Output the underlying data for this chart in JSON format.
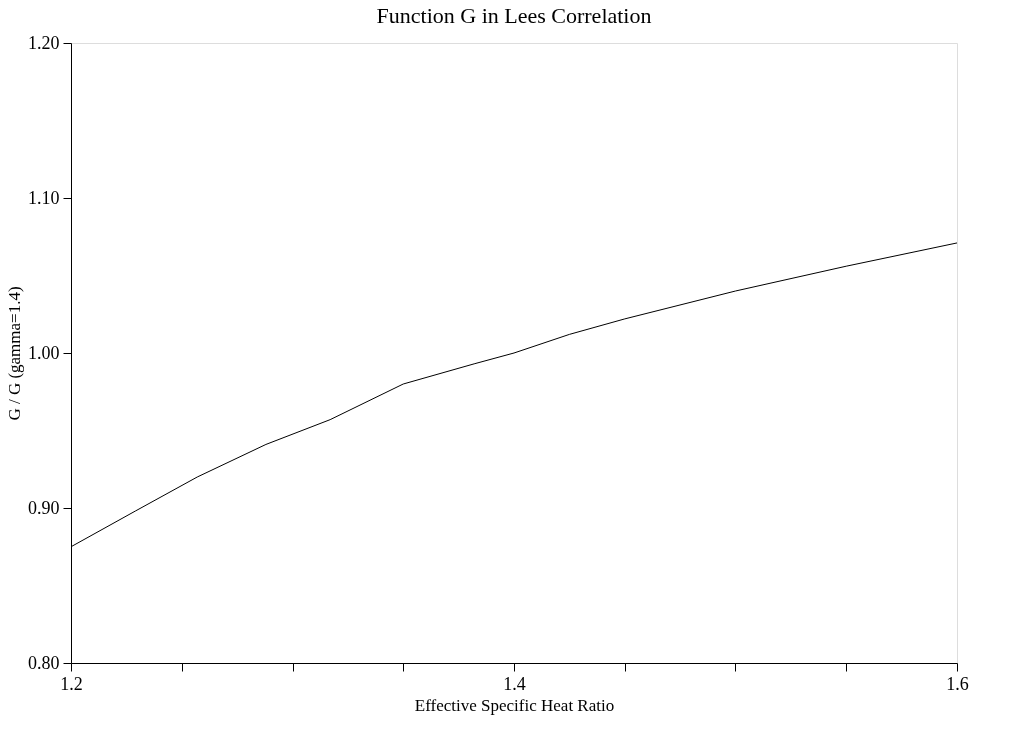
{
  "chart_data": {
    "type": "line",
    "title": "Function G in Lees Correlation",
    "xlabel": "Effective Specific Heat Ratio",
    "ylabel": "G / G (gamma=1.4)",
    "x": [
      1.2,
      1.229,
      1.257,
      1.288,
      1.317,
      1.35,
      1.382,
      1.4,
      1.425,
      1.45,
      1.5,
      1.55,
      1.6
    ],
    "series": [
      {
        "color": "#000000",
        "values": [
          0.875,
          0.898,
          0.92,
          0.941,
          0.957,
          0.98,
          0.993,
          1.0,
          1.012,
          1.022,
          1.04,
          1.056,
          1.071
        ]
      }
    ],
    "xlim": [
      1.2,
      1.6
    ],
    "xticks": [
      1.2,
      {
        "value": 1.25,
        "label": null
      },
      {
        "value": 1.3,
        "label": null
      },
      {
        "value": 1.35,
        "label": null
      },
      1.4,
      {
        "value": 1.45,
        "label": null
      },
      {
        "value": 1.5,
        "label": null
      },
      {
        "value": 1.55,
        "label": null
      },
      1.6
    ],
    "ylim": [
      0.8,
      1.2
    ],
    "yticks": [
      {
        "value": 0.8,
        "label": "0.80"
      },
      {
        "value": 0.9,
        "label": "0.90"
      },
      {
        "value": 1.0,
        "label": "1.00"
      },
      {
        "value": 1.1,
        "label": "1.10"
      },
      {
        "value": 1.2,
        "label": "1.20"
      }
    ],
    "grid": false,
    "marker": "none",
    "line_style": "solid"
  }
}
